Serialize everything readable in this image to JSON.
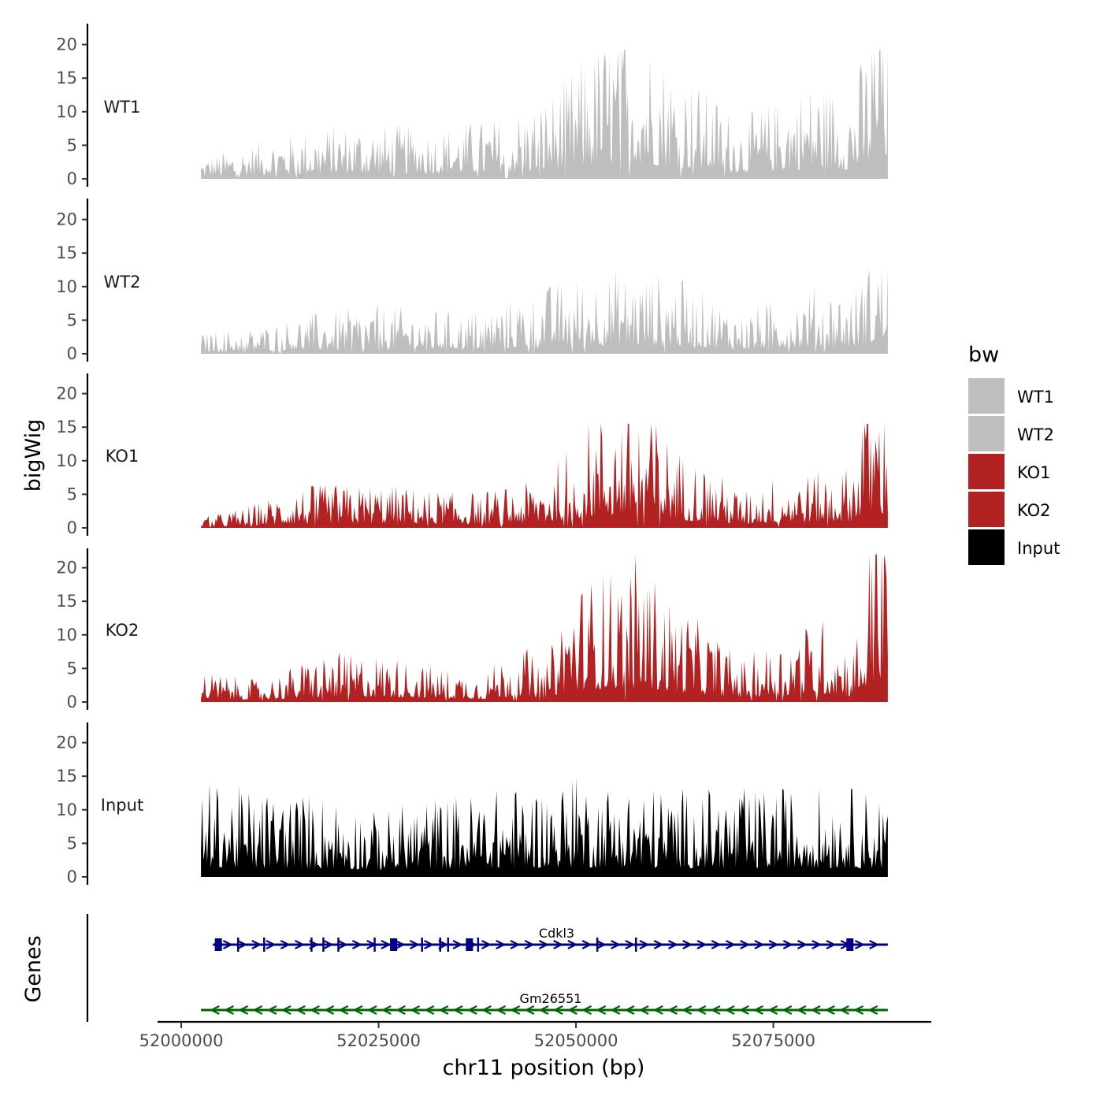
{
  "chart_data": {
    "type": "area",
    "chromosome": "chr11",
    "xlabel": "chr11 position (bp)",
    "ylabel_tracks": "bigWig",
    "ylabel_genes": "Genes",
    "xlim": [
      51997000,
      52095000
    ],
    "x_ticks": [
      52000000,
      52025000,
      52050000,
      52075000
    ],
    "x_tick_labels": [
      "52000000",
      "52025000",
      "52050000",
      "52075000"
    ],
    "ylim": [
      0,
      23
    ],
    "y_ticks": [
      0,
      5,
      10,
      15,
      20
    ],
    "y_tick_labels": [
      "0",
      "5",
      "10",
      "15",
      "20"
    ],
    "region": [
      52002500,
      52089500
    ],
    "tracks": [
      {
        "name": "WT1",
        "color": "#bebebe",
        "max": 19.2,
        "profile_x": [
          52002500,
          52012000,
          52022000,
          52032000,
          52040000,
          52045000,
          52049000,
          52052000,
          52055000,
          52057000,
          52062000,
          52067000,
          52071000,
          52075000,
          52080000,
          52085000,
          52087500,
          52088500,
          52089500
        ],
        "profile_y": [
          1.2,
          2.5,
          3.3,
          3.0,
          3.5,
          4.5,
          6.0,
          7.5,
          8.8,
          9.5,
          7.0,
          5.0,
          3.5,
          4.5,
          5.8,
          5.2,
          9.0,
          13.5,
          11.0
        ]
      },
      {
        "name": "WT2",
        "color": "#bebebe",
        "max": 12.5,
        "profile_x": [
          52002500,
          52010000,
          52015000,
          52025000,
          52035000,
          52042000,
          52048000,
          52052000,
          52056000,
          52062000,
          52066000,
          52071000,
          52076000,
          52081000,
          52085000,
          52087500,
          52089500
        ],
        "profile_y": [
          1.2,
          1.6,
          2.2,
          2.8,
          2.4,
          3.2,
          4.2,
          4.8,
          4.8,
          4.6,
          3.6,
          2.4,
          3.4,
          4.0,
          3.6,
          5.8,
          7.0
        ]
      },
      {
        "name": "KO1",
        "color": "#b22222",
        "max": 15.5,
        "profile_x": [
          52002500,
          52008000,
          52015000,
          52025000,
          52035000,
          52043000,
          52047000,
          52050000,
          52053000,
          52056000,
          52058000,
          52063000,
          52068000,
          52071000,
          52075000,
          52080000,
          52085000,
          52086500,
          52089500
        ],
        "profile_y": [
          0.6,
          1.2,
          2.4,
          2.6,
          2.0,
          2.4,
          3.4,
          5.8,
          6.5,
          7.2,
          7.8,
          4.6,
          3.2,
          2.0,
          3.0,
          3.2,
          3.6,
          8.5,
          8.0
        ]
      },
      {
        "name": "KO2",
        "color": "#b22222",
        "max": 22.0,
        "profile_x": [
          52002500,
          52010000,
          52018000,
          52025000,
          52033000,
          52038000,
          52043000,
          52046000,
          52049000,
          52053000,
          52056000,
          52058000,
          52062000,
          52066000,
          52071000,
          52075000,
          52081000,
          52085000,
          52086500,
          52088000,
          52089500
        ],
        "profile_y": [
          1.8,
          1.2,
          2.8,
          2.8,
          2.0,
          1.6,
          3.5,
          1.8,
          6.5,
          7.5,
          8.0,
          8.5,
          6.0,
          4.5,
          2.5,
          3.4,
          5.0,
          3.2,
          6.0,
          14.0,
          11.5
        ]
      },
      {
        "name": "Input",
        "color": "#000000",
        "max": 14.8,
        "profile_x": [
          52002500,
          52010000,
          52020000,
          52025000,
          52030000,
          52040000,
          52050000,
          52060000,
          52070000,
          52080000,
          52089500
        ],
        "profile_y": [
          5.5,
          5.0,
          4.8,
          3.6,
          4.6,
          5.0,
          5.6,
          5.2,
          5.0,
          5.2,
          5.0
        ]
      }
    ],
    "genes": [
      {
        "name": "Cdkl3",
        "strand": "+",
        "color": "#00008b",
        "start": 52004000,
        "end": 52089500,
        "exons": [
          52004700,
          52007200,
          52010500,
          52016500,
          52018000,
          52019900,
          52024500,
          52026900,
          52030500,
          52032800,
          52033800,
          52036500,
          52037600,
          52052700,
          52057600,
          52084700
        ]
      },
      {
        "name": "Gm26551",
        "strand": "-",
        "color": "#006400",
        "start": 52002500,
        "end": 52089500,
        "exons": []
      }
    ],
    "legend": {
      "title": "bw",
      "position": "right",
      "entries": [
        {
          "label": "WT1",
          "color": "#bebebe"
        },
        {
          "label": "WT2",
          "color": "#bebebe"
        },
        {
          "label": "KO1",
          "color": "#b22222"
        },
        {
          "label": "KO2",
          "color": "#b22222"
        },
        {
          "label": "Input",
          "color": "#000000"
        }
      ]
    }
  }
}
